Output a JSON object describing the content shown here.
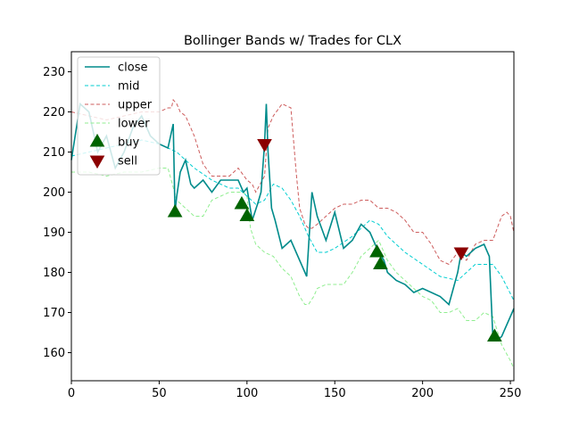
{
  "chart_data": {
    "type": "line",
    "title": "Bollinger Bands w/ Trades for CLX",
    "xlabel": "",
    "ylabel": "",
    "xlim": [
      0,
      252
    ],
    "ylim": [
      153,
      235
    ],
    "xticks": [
      0,
      50,
      100,
      150,
      200,
      250
    ],
    "yticks": [
      160,
      170,
      180,
      190,
      200,
      210,
      220,
      230
    ],
    "grid": false,
    "legend_position": "top-left",
    "series": [
      {
        "name": "close",
        "color": "#008b8b",
        "style": "solid",
        "x": [
          0,
          5,
          10,
          15,
          20,
          25,
          30,
          35,
          40,
          45,
          50,
          55,
          58,
          59,
          60,
          62,
          65,
          68,
          70,
          75,
          80,
          85,
          90,
          95,
          98,
          100,
          103,
          106,
          108,
          110,
          111,
          112,
          114,
          116,
          120,
          125,
          130,
          134,
          137,
          140,
          145,
          150,
          155,
          160,
          165,
          170,
          175,
          178,
          180,
          185,
          190,
          195,
          200,
          205,
          210,
          215,
          220,
          222,
          225,
          230,
          235,
          238,
          240,
          242,
          245,
          250,
          252
        ],
        "y": [
          208,
          222,
          220,
          210,
          214,
          206,
          210,
          216,
          219,
          214,
          212,
          211,
          217,
          195,
          199,
          205,
          208,
          202,
          201,
          203,
          200,
          203,
          203,
          203,
          200,
          201,
          193,
          197,
          200,
          212,
          222,
          210,
          196,
          193,
          186,
          188,
          183,
          179,
          200,
          194,
          188,
          195,
          186,
          188,
          192,
          190,
          185,
          183,
          180,
          178,
          177,
          175,
          176,
          175,
          174,
          172,
          180,
          185,
          184,
          186,
          187,
          184,
          164,
          163,
          164,
          169,
          171
        ]
      },
      {
        "name": "mid",
        "color": "#00ced1",
        "style": "dashed",
        "x": [
          0,
          10,
          20,
          30,
          40,
          50,
          55,
          60,
          70,
          80,
          90,
          95,
          100,
          105,
          110,
          115,
          120,
          125,
          130,
          135,
          140,
          145,
          150,
          160,
          170,
          175,
          180,
          190,
          200,
          210,
          220,
          230,
          240,
          245,
          252
        ],
        "y": [
          209,
          210,
          211,
          212,
          213,
          212,
          211,
          210,
          206,
          203,
          201,
          201,
          199,
          197,
          198,
          202,
          201,
          198,
          194,
          189,
          185,
          185,
          186,
          189,
          193,
          192,
          189,
          185,
          182,
          179,
          178,
          182,
          182,
          179,
          173
        ]
      },
      {
        "name": "upper",
        "color": "#cd5c5c",
        "style": "dashed",
        "x": [
          0,
          10,
          20,
          30,
          40,
          50,
          55,
          57,
          58,
          60,
          62,
          65,
          70,
          75,
          80,
          85,
          90,
          95,
          100,
          103,
          105,
          110,
          112,
          115,
          120,
          125,
          128,
          130,
          133,
          135,
          137,
          140,
          145,
          150,
          155,
          160,
          165,
          170,
          175,
          180,
          185,
          190,
          195,
          200,
          205,
          210,
          215,
          220,
          225,
          230,
          235,
          240,
          245,
          248,
          250,
          252
        ],
        "y": [
          220,
          219,
          218,
          219,
          220,
          220,
          221,
          221,
          223,
          222,
          220,
          219,
          214,
          207,
          204,
          204,
          204,
          206,
          203,
          202,
          200,
          204,
          216,
          219,
          222,
          221,
          205,
          196,
          192,
          191,
          191,
          192,
          194,
          196,
          197,
          197,
          198,
          198,
          196,
          196,
          195,
          193,
          190,
          190,
          187,
          183,
          182,
          185,
          183,
          187,
          188,
          188,
          194,
          195,
          194,
          190
        ]
      },
      {
        "name": "lower",
        "color": "#90ee90",
        "style": "dashed",
        "x": [
          0,
          10,
          20,
          30,
          40,
          50,
          55,
          60,
          65,
          70,
          75,
          80,
          85,
          90,
          95,
          98,
          100,
          102,
          105,
          110,
          115,
          120,
          125,
          128,
          130,
          133,
          135,
          138,
          140,
          145,
          150,
          155,
          160,
          165,
          170,
          175,
          180,
          185,
          190,
          195,
          200,
          205,
          210,
          215,
          220,
          225,
          230,
          235,
          240,
          245,
          250,
          252
        ],
        "y": [
          205,
          205,
          204,
          205,
          205,
          206,
          206,
          198,
          196,
          194,
          194,
          198,
          199,
          200,
          200,
          200,
          199,
          191,
          187,
          185,
          184,
          181,
          179,
          176,
          174,
          172,
          172,
          174,
          176,
          177,
          177,
          177,
          180,
          184,
          186,
          188,
          183,
          180,
          178,
          176,
          174,
          173,
          170,
          170,
          171,
          168,
          168,
          170,
          169,
          162,
          158,
          156
        ]
      }
    ],
    "markers": [
      {
        "name": "buy",
        "color": "#006400",
        "shape": "triangle-up",
        "points": [
          [
            59,
            195
          ],
          [
            97,
            197
          ],
          [
            100,
            194
          ],
          [
            174,
            185
          ],
          [
            176,
            182
          ],
          [
            241,
            164
          ]
        ]
      },
      {
        "name": "sell",
        "color": "#8b0000",
        "shape": "triangle-down",
        "points": [
          [
            110,
            212
          ],
          [
            222,
            185
          ]
        ]
      }
    ]
  }
}
